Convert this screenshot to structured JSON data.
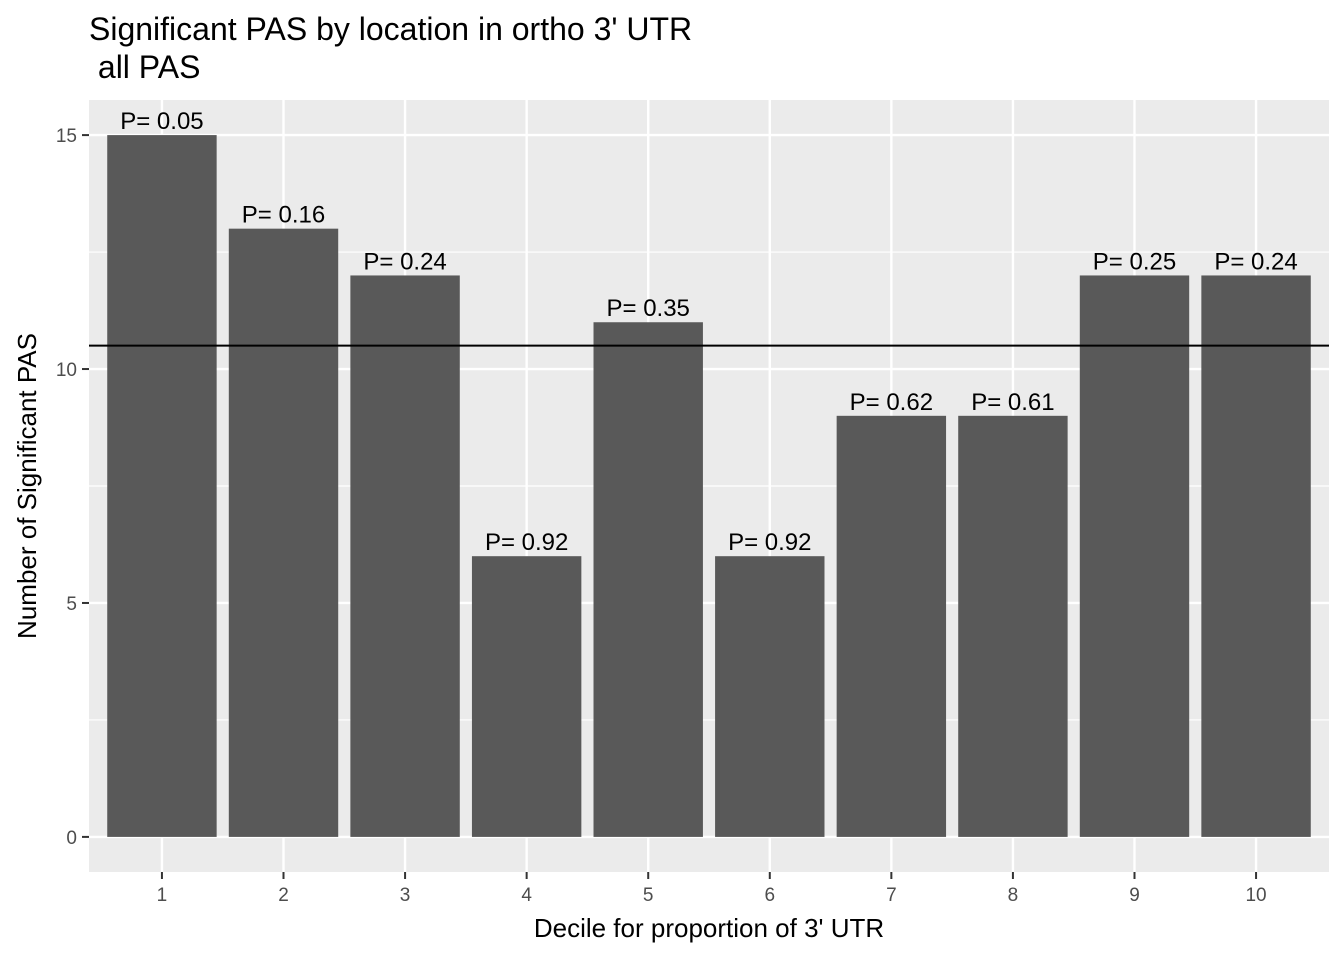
{
  "chart_data": {
    "type": "bar",
    "title": "Significant PAS by location in ortho 3' UTR",
    "subtitle": " all PAS",
    "xlabel": "Decile for proportion of 3' UTR",
    "ylabel": "Number of Significant PAS",
    "categories": [
      "1",
      "2",
      "3",
      "4",
      "5",
      "6",
      "7",
      "8",
      "9",
      "10"
    ],
    "values": [
      15,
      13,
      12,
      6,
      11,
      6,
      9,
      9,
      12,
      12
    ],
    "labels": [
      "P= 0.05",
      "P= 0.16",
      "P= 0.24",
      "P= 0.92",
      "P= 0.35",
      "P= 0.92",
      "P= 0.62",
      "P= 0.61",
      "P= 0.25",
      "P= 0.24"
    ],
    "ylim": [
      -0.75,
      15.75
    ],
    "yticks": [
      0,
      5,
      10,
      15
    ],
    "reference_line": 10.5,
    "grid": true,
    "legend": "none",
    "colors": {
      "panel": "#ebebeb",
      "grid": "#ffffff",
      "bar": "#595959",
      "reference_line": "#000000",
      "tick": "#333333"
    }
  }
}
